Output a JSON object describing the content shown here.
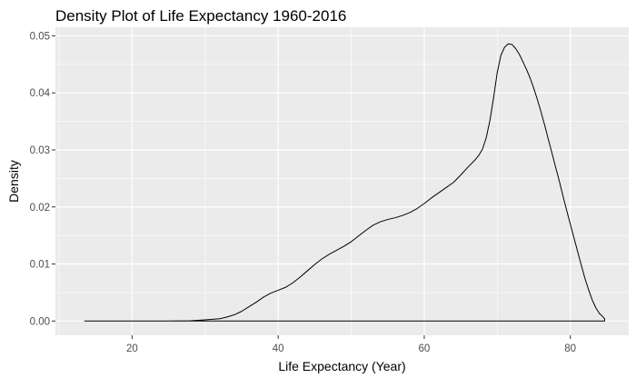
{
  "chart_data": {
    "type": "line",
    "title": "Density Plot of Life Expectancy 1960-2016",
    "xlabel": "Life Expectancy (Year)",
    "ylabel": "Density",
    "xlim": [
      9.5,
      88
    ],
    "ylim": [
      -0.0025,
      0.0515
    ],
    "x_ticks": [
      20,
      40,
      60,
      80
    ],
    "y_ticks": [
      0.0,
      0.01,
      0.02,
      0.03,
      0.04,
      0.05
    ],
    "x_tick_labels": [
      "20",
      "40",
      "60",
      "80"
    ],
    "y_tick_labels": [
      "0.00",
      "0.01",
      "0.02",
      "0.03",
      "0.04",
      "0.05"
    ],
    "grid": true,
    "panel_background": "#ebebeb",
    "grid_color": "#ffffff",
    "line_color": "#000000",
    "series": [
      {
        "x": [
          13.5,
          20,
          25,
          28,
          30,
          32,
          33,
          34,
          35,
          36,
          37,
          38,
          39,
          40,
          41,
          42,
          43,
          44,
          45,
          46,
          47,
          48,
          49,
          50,
          51,
          52,
          53,
          54,
          55,
          56,
          57,
          58,
          59,
          60,
          61,
          62,
          63,
          64,
          65,
          66,
          67,
          67.5,
          68,
          68.5,
          69,
          69.5,
          70,
          70.5,
          71,
          71.5,
          72,
          72.5,
          73,
          73.5,
          74,
          74.5,
          75,
          75.5,
          76,
          76.5,
          77,
          77.5,
          78,
          78.5,
          79,
          79.5,
          80,
          80.5,
          81,
          81.5,
          82,
          82.5,
          83,
          83.5,
          84,
          84.5,
          84.7,
          84.7
        ],
        "y": [
          0.0,
          0.0,
          1e-05,
          5e-05,
          0.0002,
          0.0004,
          0.0007,
          0.0011,
          0.0017,
          0.0025,
          0.0033,
          0.0042,
          0.0049,
          0.0054,
          0.0059,
          0.0067,
          0.0077,
          0.0088,
          0.0099,
          0.0109,
          0.0117,
          0.0124,
          0.0131,
          0.0139,
          0.0149,
          0.0159,
          0.0168,
          0.0174,
          0.0178,
          0.0181,
          0.0185,
          0.019,
          0.0197,
          0.0206,
          0.0216,
          0.0225,
          0.0234,
          0.0243,
          0.0256,
          0.027,
          0.0283,
          0.0291,
          0.0302,
          0.0322,
          0.0352,
          0.0392,
          0.0436,
          0.0466,
          0.048,
          0.0486,
          0.0485,
          0.0478,
          0.0468,
          0.0455,
          0.0441,
          0.0426,
          0.0408,
          0.0388,
          0.0366,
          0.0343,
          0.0318,
          0.0294,
          0.0269,
          0.0245,
          0.0219,
          0.0194,
          0.017,
          0.0146,
          0.0122,
          0.0098,
          0.0075,
          0.0055,
          0.0037,
          0.0023,
          0.0013,
          0.0007,
          0.0004,
          0.0
        ]
      }
    ]
  }
}
